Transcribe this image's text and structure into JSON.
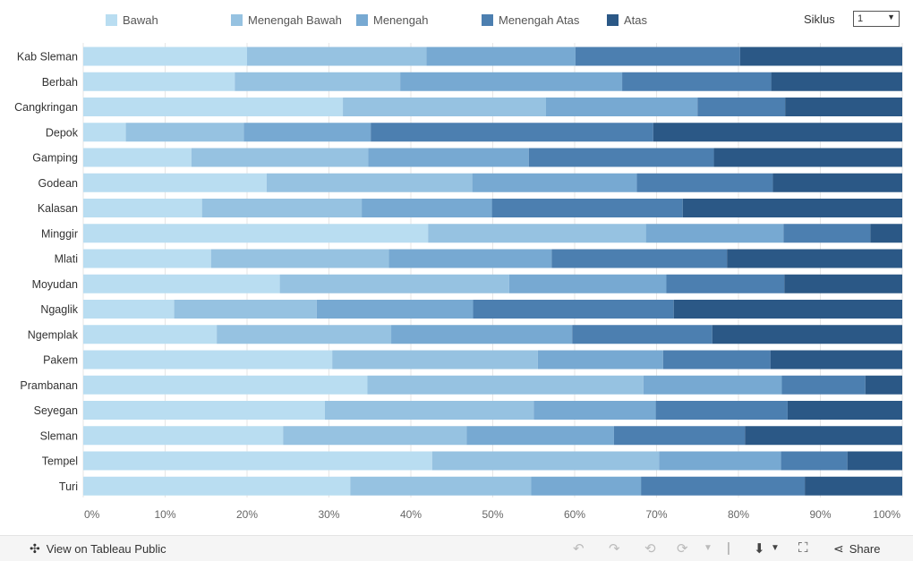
{
  "legend": {
    "items": [
      {
        "label": "Bawah",
        "color": "#b9ddf1"
      },
      {
        "label": "Menengah Bawah",
        "color": "#96c2e1"
      },
      {
        "label": "Menengah",
        "color": "#77a9d2"
      },
      {
        "label": "Menengah Atas",
        "color": "#4c7fb0"
      },
      {
        "label": "Atas",
        "color": "#2b5886"
      }
    ]
  },
  "filter": {
    "label": "Siklus",
    "value": "1"
  },
  "chart_data": {
    "type": "bar",
    "orientation": "horizontal",
    "stacked": "percent",
    "categories": [
      "Kab Sleman",
      "Berbah",
      "Cangkringan",
      "Depok",
      "Gamping",
      "Godean",
      "Kalasan",
      "Minggir",
      "Mlati",
      "Moyudan",
      "Ngaglik",
      "Ngemplak",
      "Pakem",
      "Prambanan",
      "Seyegan",
      "Sleman",
      "Tempel",
      "Turi"
    ],
    "series": [
      {
        "name": "Bawah",
        "values": [
          20.0,
          18.5,
          31.7,
          5.2,
          13.2,
          22.4,
          14.5,
          42.1,
          15.6,
          24.0,
          11.1,
          16.3,
          30.4,
          34.7,
          29.5,
          24.4,
          42.6,
          32.6
        ]
      },
      {
        "name": "Menengah Bawah",
        "values": [
          21.9,
          20.2,
          24.8,
          14.4,
          21.6,
          25.1,
          19.5,
          26.6,
          21.7,
          28.0,
          17.4,
          21.3,
          25.1,
          33.7,
          25.5,
          22.4,
          27.7,
          22.1
        ]
      },
      {
        "name": "Menengah",
        "values": [
          18.2,
          27.1,
          18.5,
          15.5,
          19.6,
          20.1,
          15.9,
          16.8,
          19.9,
          19.2,
          19.1,
          22.1,
          15.3,
          16.9,
          14.9,
          18.0,
          14.9,
          13.4
        ]
      },
      {
        "name": "Menengah Atas",
        "values": [
          20.1,
          18.2,
          10.7,
          34.5,
          22.6,
          16.6,
          23.3,
          10.6,
          21.4,
          14.4,
          24.5,
          17.1,
          13.1,
          10.2,
          16.1,
          16.0,
          8.1,
          20.0
        ]
      },
      {
        "name": "Atas",
        "values": [
          19.8,
          16.0,
          14.3,
          30.4,
          23.0,
          15.8,
          26.8,
          3.9,
          21.4,
          14.4,
          27.9,
          23.2,
          16.1,
          4.5,
          14.0,
          19.2,
          6.7,
          11.9
        ]
      }
    ],
    "xlim": [
      0,
      100
    ],
    "x_ticks": [
      "0%",
      "10%",
      "20%",
      "30%",
      "40%",
      "50%",
      "60%",
      "70%",
      "80%",
      "90%",
      "100%"
    ],
    "grid": "vertical",
    "legend_position": "top"
  },
  "footer": {
    "view_label": "View on Tableau Public",
    "share_label": "Share"
  }
}
